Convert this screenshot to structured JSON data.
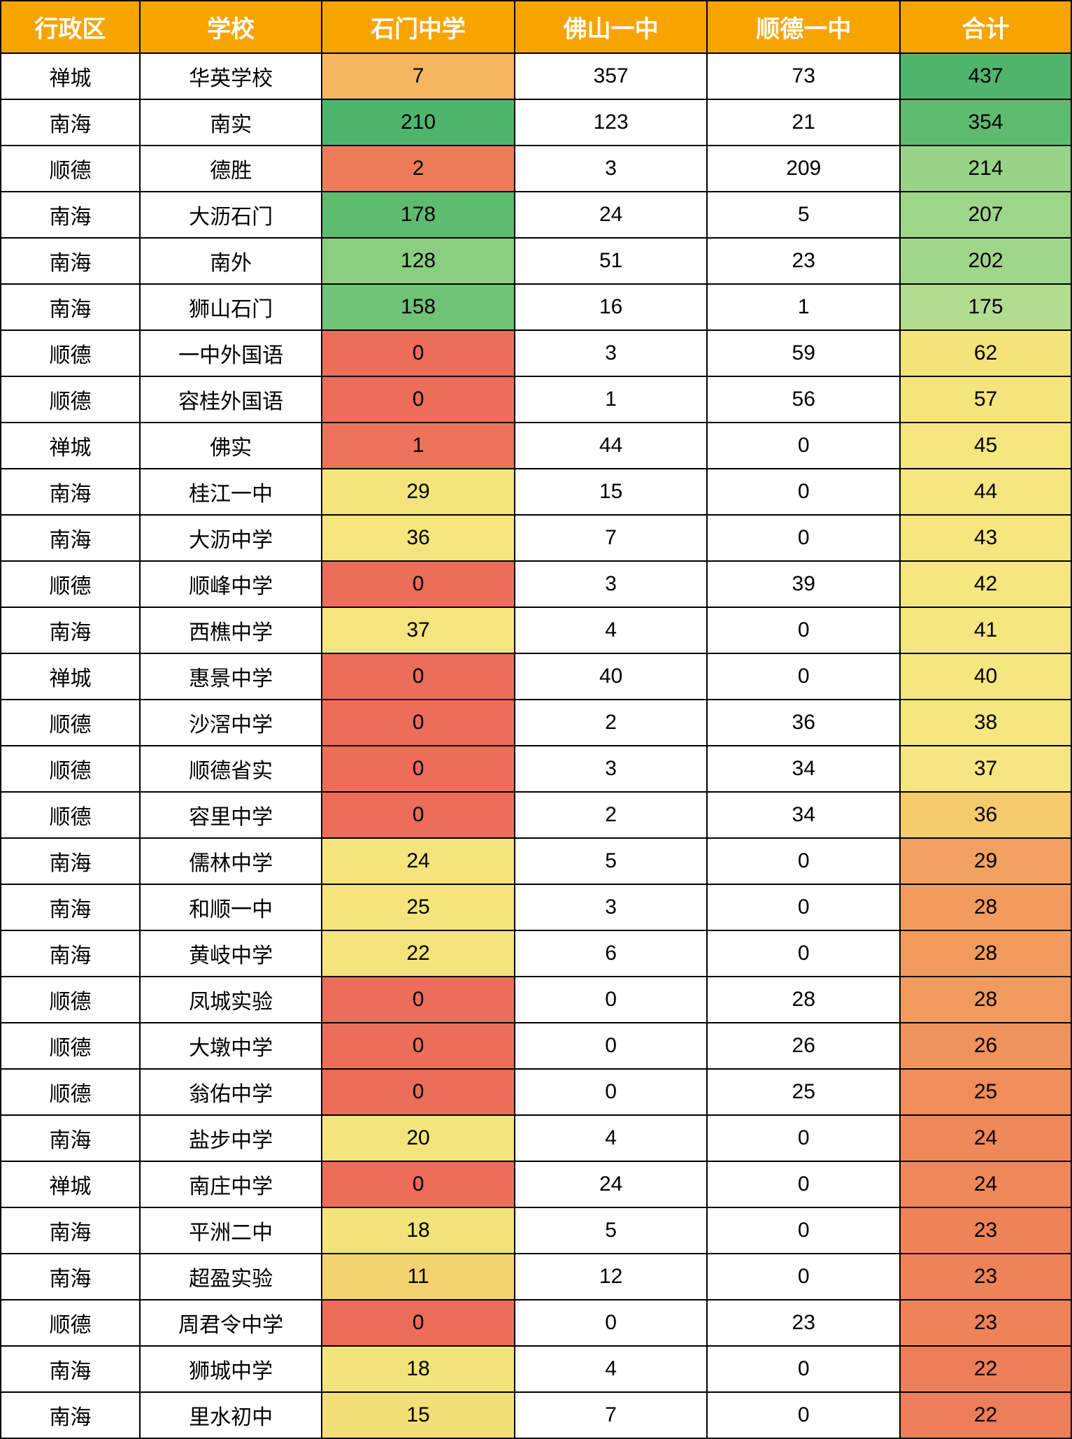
{
  "table": {
    "headers": {
      "district": "行政区",
      "school": "学校",
      "shimen": "石门中学",
      "foshan": "佛山一中",
      "shunde": "顺德一中",
      "total": "合计"
    },
    "header_bg": "#f7a400",
    "header_color": "#ffffff",
    "border_color": "#000000",
    "cell_bg_default": "#ffffff",
    "colors": {
      "green_dark": "#4fb56c",
      "green_mid": "#7bc77d",
      "green_light": "#a8d98e",
      "yellow_green": "#d5e59e",
      "yellow": "#f4e47a",
      "yellow_light": "#f6e899",
      "orange_light": "#f7ba6f",
      "orange": "#f3a160",
      "orange_mid": "#f08c5a",
      "red_light": "#ed7b5a",
      "red": "#eb6d5a",
      "red_dark": "#e9645a"
    },
    "rows": [
      {
        "district": "禅城",
        "school": "华英学校",
        "shimen": 7,
        "shimen_bg": "#f5b561",
        "foshan": 357,
        "shunde": 73,
        "total": 437,
        "total_bg": "#4fb56c"
      },
      {
        "district": "南海",
        "school": "南实",
        "shimen": 210,
        "shimen_bg": "#4fb56c",
        "foshan": 123,
        "shunde": 21,
        "total": 354,
        "total_bg": "#5ebb70"
      },
      {
        "district": "顺德",
        "school": "德胜",
        "shimen": 2,
        "shimen_bg": "#ed7b5a",
        "foshan": 3,
        "shunde": 209,
        "total": 214,
        "total_bg": "#99d388"
      },
      {
        "district": "南海",
        "school": "大沥石门",
        "shimen": 178,
        "shimen_bg": "#5ebb70",
        "foshan": 24,
        "shunde": 5,
        "total": 207,
        "total_bg": "#9dd589"
      },
      {
        "district": "南海",
        "school": "南外",
        "shimen": 128,
        "shimen_bg": "#89ce81",
        "foshan": 51,
        "shunde": 23,
        "total": 202,
        "total_bg": "#a0d68a"
      },
      {
        "district": "南海",
        "school": "狮山石门",
        "shimen": 158,
        "shimen_bg": "#6fc276",
        "foshan": 16,
        "shunde": 1,
        "total": 175,
        "total_bg": "#b2dc90"
      },
      {
        "district": "顺德",
        "school": "一中外国语",
        "shimen": 0,
        "shimen_bg": "#eb6d5a",
        "foshan": 3,
        "shunde": 59,
        "total": 62,
        "total_bg": "#f2e37b"
      },
      {
        "district": "顺德",
        "school": "容桂外国语",
        "shimen": 0,
        "shimen_bg": "#eb6d5a",
        "foshan": 1,
        "shunde": 56,
        "total": 57,
        "total_bg": "#f3e47c"
      },
      {
        "district": "禅城",
        "school": "佛实",
        "shimen": 1,
        "shimen_bg": "#ec735a",
        "foshan": 44,
        "shunde": 0,
        "total": 45,
        "total_bg": "#f5e680"
      },
      {
        "district": "南海",
        "school": "桂江一中",
        "shimen": 29,
        "shimen_bg": "#f3e47c",
        "foshan": 15,
        "shunde": 0,
        "total": 44,
        "total_bg": "#f5e680"
      },
      {
        "district": "南海",
        "school": "大沥中学",
        "shimen": 36,
        "shimen_bg": "#f4e57e",
        "foshan": 7,
        "shunde": 0,
        "total": 43,
        "total_bg": "#f5e681"
      },
      {
        "district": "顺德",
        "school": "顺峰中学",
        "shimen": 0,
        "shimen_bg": "#eb6d5a",
        "foshan": 3,
        "shunde": 39,
        "total": 42,
        "total_bg": "#f5e681"
      },
      {
        "district": "南海",
        "school": "西樵中学",
        "shimen": 37,
        "shimen_bg": "#f4e57e",
        "foshan": 4,
        "shunde": 0,
        "total": 41,
        "total_bg": "#f5e681"
      },
      {
        "district": "禅城",
        "school": "惠景中学",
        "shimen": 0,
        "shimen_bg": "#eb6d5a",
        "foshan": 40,
        "shunde": 0,
        "total": 40,
        "total_bg": "#f5e682"
      },
      {
        "district": "顺德",
        "school": "沙滘中学",
        "shimen": 0,
        "shimen_bg": "#eb6d5a",
        "foshan": 2,
        "shunde": 36,
        "total": 38,
        "total_bg": "#f6e682"
      },
      {
        "district": "顺德",
        "school": "顺德省实",
        "shimen": 0,
        "shimen_bg": "#eb6d5a",
        "foshan": 3,
        "shunde": 34,
        "total": 37,
        "total_bg": "#f6e683"
      },
      {
        "district": "顺德",
        "school": "容里中学",
        "shimen": 0,
        "shimen_bg": "#eb6d5a",
        "foshan": 2,
        "shunde": 34,
        "total": 36,
        "total_bg": "#f6ca6f"
      },
      {
        "district": "南海",
        "school": "儒林中学",
        "shimen": 24,
        "shimen_bg": "#f3e47c",
        "foshan": 5,
        "shunde": 0,
        "total": 29,
        "total_bg": "#f2a160"
      },
      {
        "district": "南海",
        "school": "和顺一中",
        "shimen": 25,
        "shimen_bg": "#f3e47c",
        "foshan": 3,
        "shunde": 0,
        "total": 28,
        "total_bg": "#f19c5e"
      },
      {
        "district": "南海",
        "school": "黄岐中学",
        "shimen": 22,
        "shimen_bg": "#f3e47b",
        "foshan": 6,
        "shunde": 0,
        "total": 28,
        "total_bg": "#f19c5e"
      },
      {
        "district": "顺德",
        "school": "凤城实验",
        "shimen": 0,
        "shimen_bg": "#eb6d5a",
        "foshan": 0,
        "shunde": 28,
        "total": 28,
        "total_bg": "#f19c5e"
      },
      {
        "district": "顺德",
        "school": "大墩中学",
        "shimen": 0,
        "shimen_bg": "#eb6d5a",
        "foshan": 0,
        "shunde": 26,
        "total": 26,
        "total_bg": "#f0925c"
      },
      {
        "district": "顺德",
        "school": "翁佑中学",
        "shimen": 0,
        "shimen_bg": "#eb6d5a",
        "foshan": 0,
        "shunde": 25,
        "total": 25,
        "total_bg": "#ef8d5b"
      },
      {
        "district": "南海",
        "school": "盐步中学",
        "shimen": 20,
        "shimen_bg": "#f3e47b",
        "foshan": 4,
        "shunde": 0,
        "total": 24,
        "total_bg": "#ef885b"
      },
      {
        "district": "禅城",
        "school": "南庄中学",
        "shimen": 0,
        "shimen_bg": "#eb6d5a",
        "foshan": 24,
        "shunde": 0,
        "total": 24,
        "total_bg": "#ef885b"
      },
      {
        "district": "南海",
        "school": "平洲二中",
        "shimen": 18,
        "shimen_bg": "#f3e37b",
        "foshan": 5,
        "shunde": 0,
        "total": 23,
        "total_bg": "#ee835a"
      },
      {
        "district": "南海",
        "school": "超盈实验",
        "shimen": 11,
        "shimen_bg": "#f4d36f",
        "foshan": 12,
        "shunde": 0,
        "total": 23,
        "total_bg": "#ee835a"
      },
      {
        "district": "顺德",
        "school": "周君令中学",
        "shimen": 0,
        "shimen_bg": "#eb6d5a",
        "foshan": 0,
        "shunde": 23,
        "total": 23,
        "total_bg": "#ee835a"
      },
      {
        "district": "南海",
        "school": "狮城中学",
        "shimen": 18,
        "shimen_bg": "#f3e37b",
        "foshan": 4,
        "shunde": 0,
        "total": 22,
        "total_bg": "#ed7e5a"
      },
      {
        "district": "南海",
        "school": "里水初中",
        "shimen": 15,
        "shimen_bg": "#f3df78",
        "foshan": 7,
        "shunde": 0,
        "total": 22,
        "total_bg": "#ed7e5a"
      }
    ]
  }
}
